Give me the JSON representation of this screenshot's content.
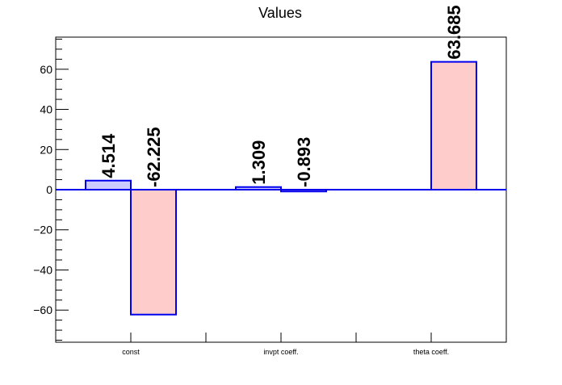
{
  "chart_data": {
    "type": "bar",
    "title": "Values",
    "xlabel": "",
    "ylabel": "",
    "ylim": [
      -76,
      76
    ],
    "yticks": [
      -60,
      -40,
      -20,
      0,
      20,
      40,
      60
    ],
    "ytick_labels": [
      "−60",
      "−40",
      "−20",
      "0",
      "20",
      "40",
      "60"
    ],
    "categories": [
      "const",
      "invpt coeff.",
      "theta coeff."
    ],
    "series": [
      {
        "values": [
          4.514,
          1.309,
          0
        ],
        "labels": [
          "4.514",
          "1.309",
          ""
        ],
        "color": "#ccccff"
      },
      {
        "values": [
          -62.225,
          -0.893,
          63.685
        ],
        "labels": [
          "-62.225",
          "-0.893",
          "63.685"
        ],
        "color": "#ffcccc"
      }
    ],
    "edge_color": "#0000ee",
    "grid": false,
    "legend": "none"
  }
}
